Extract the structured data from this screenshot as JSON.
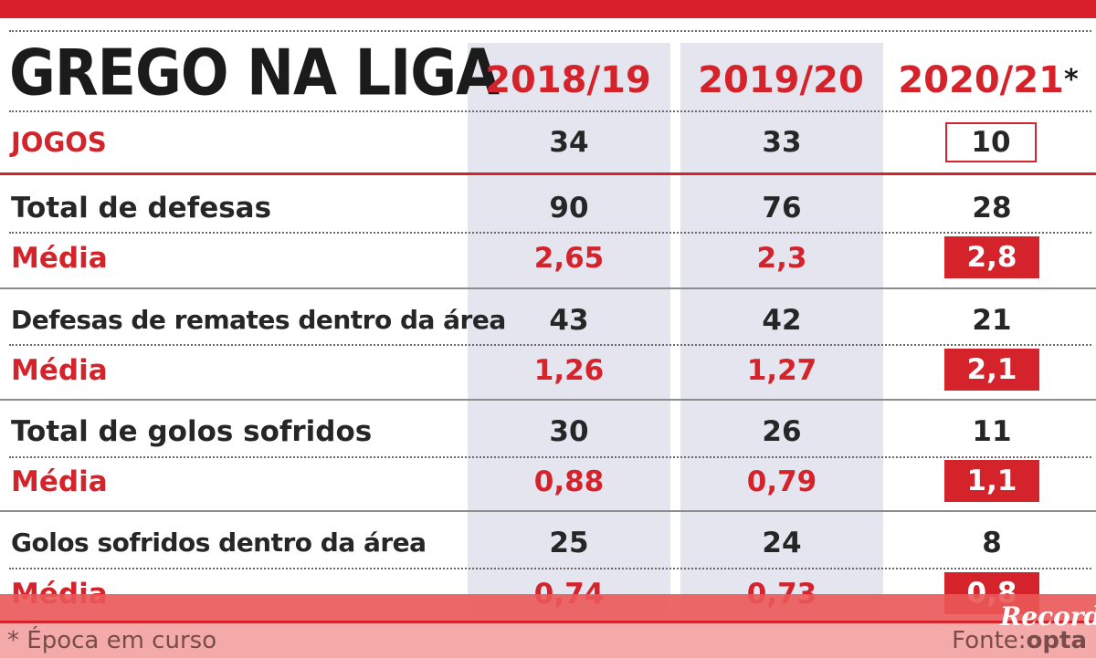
{
  "title": "GREGO NA LIGA",
  "seasons": [
    "2018/19",
    "2019/20",
    "2020/21"
  ],
  "season_marker": "*",
  "jogos": {
    "label": "JOGOS",
    "values": [
      "34",
      "33",
      "10"
    ]
  },
  "rows": [
    {
      "label": "Total de defesas",
      "values": [
        "90",
        "76",
        "28"
      ]
    },
    {
      "label": "Média",
      "values": [
        "2,65",
        "2,3",
        "2,8"
      ]
    },
    {
      "label": "Defesas de remates dentro da área",
      "values": [
        "43",
        "42",
        "21"
      ]
    },
    {
      "label": "Média",
      "values": [
        "1,26",
        "1,27",
        "2,1"
      ]
    },
    {
      "label": "Total de golos sofridos",
      "values": [
        "30",
        "26",
        "11"
      ]
    },
    {
      "label": "Média",
      "values": [
        "0,88",
        "0,79",
        "1,1"
      ]
    },
    {
      "label": "Golos sofridos dentro da área",
      "values": [
        "25",
        "24",
        "8"
      ]
    },
    {
      "label": "Média",
      "values": [
        "0,74",
        "0,73",
        "0,8"
      ]
    }
  ],
  "footnote": "* Época em curso",
  "source_label": "Fonte:",
  "source_name": "opta",
  "brand": "Record",
  "colors": {
    "accent": "#d4232b",
    "shade": "#e4e5ee",
    "text": "#262626"
  }
}
